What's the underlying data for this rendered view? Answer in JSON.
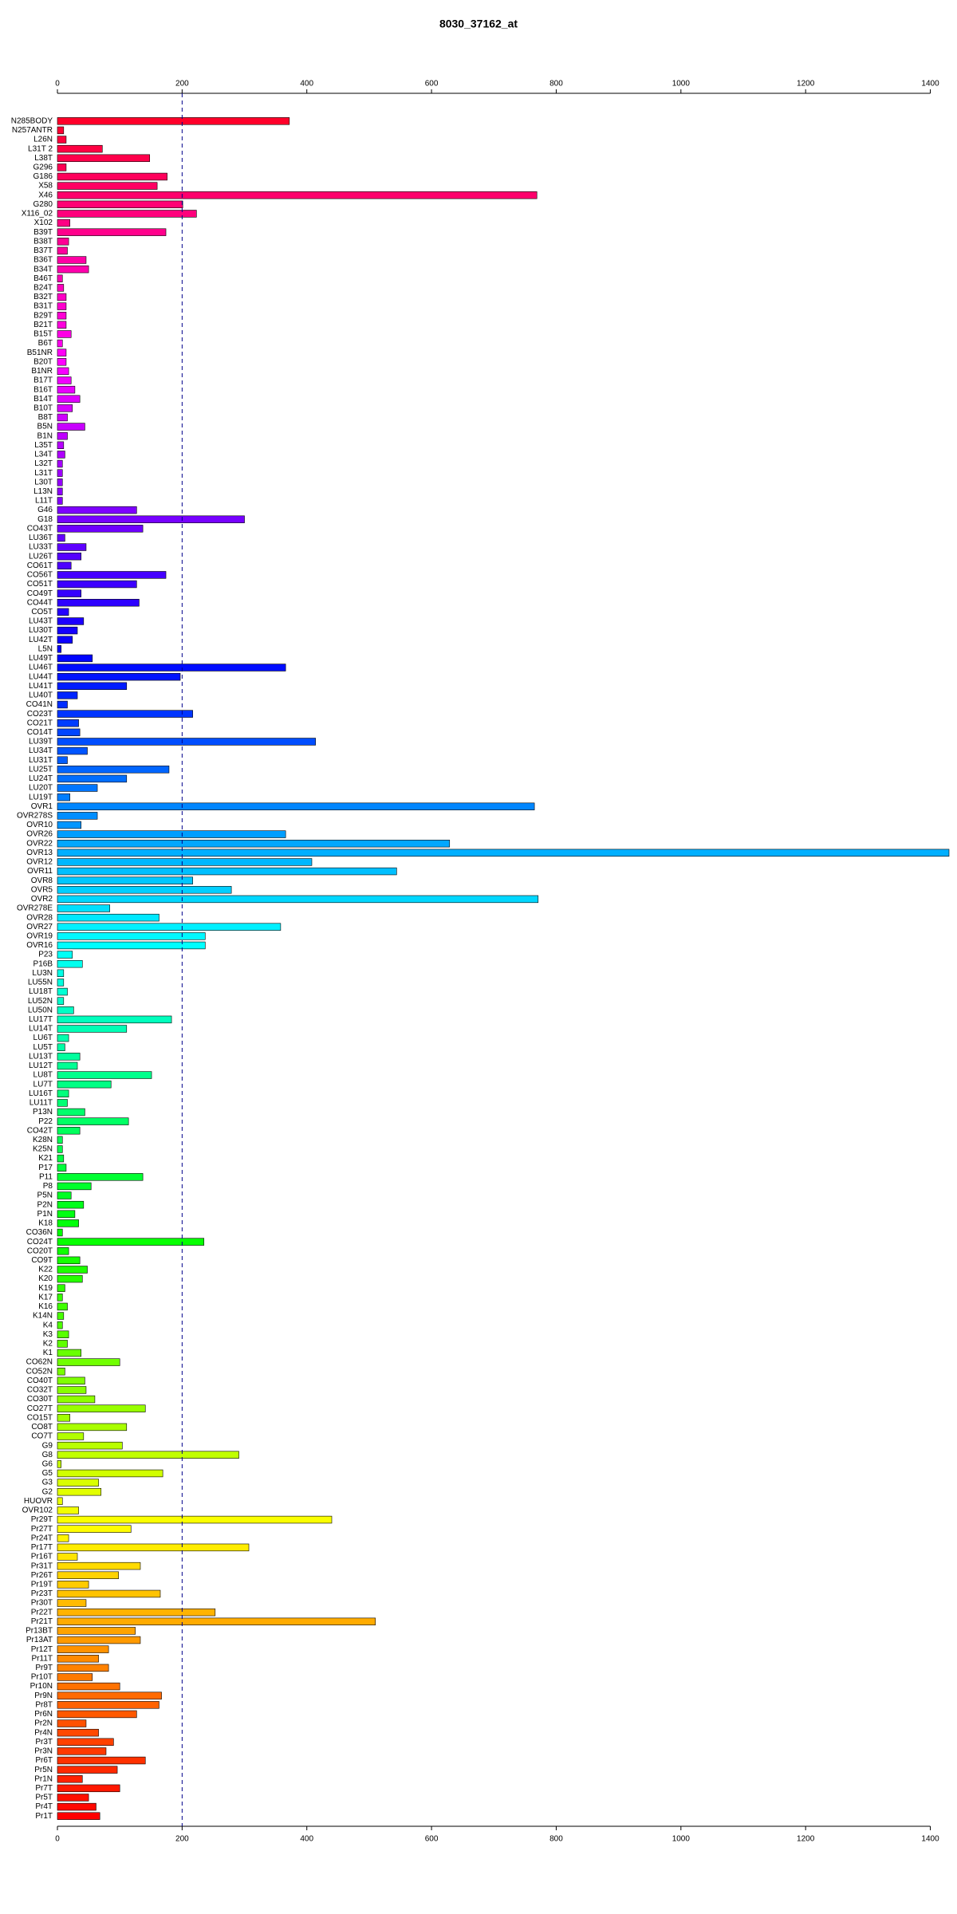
{
  "chart_data": {
    "type": "barh",
    "title": "8030_37162_at",
    "categories": [
      "N285BODY",
      "N257ANTR",
      "L26N",
      "L31T 2",
      "L38T",
      "G296",
      "G186",
      "X58",
      "X46",
      "G280",
      "X116_02",
      "X102",
      "B39T",
      "B38T",
      "B37T",
      "B36T",
      "B34T",
      "B46T",
      "B24T",
      "B32T",
      "B31T",
      "B29T",
      "B21T",
      "B15T",
      "B6T",
      "B51NR",
      "B20T",
      "B1NR",
      "B17T",
      "B16T",
      "B14T",
      "B10T",
      "B8T",
      "B5N",
      "B1N",
      "L35T",
      "L34T",
      "L32T",
      "L31T",
      "L30T",
      "L13N",
      "L11T",
      "G46",
      "G18",
      "CO43T",
      "LU36T",
      "LU33T",
      "LU26T",
      "CO61T",
      "CO56T",
      "CO51T",
      "CO49T",
      "CO44T",
      "CO5T",
      "LU43T",
      "LU30T",
      "LU42T",
      "L5N",
      "LU49T",
      "LU46T",
      "LU44T",
      "LU41T",
      "LU40T",
      "CO41N",
      "CO23T",
      "CO21T",
      "CO14T",
      "LU39T",
      "LU34T",
      "LU31T",
      "LU25T",
      "LU24T",
      "LU20T",
      "LU19T",
      "OVR1",
      "OVR278S",
      "OVR10",
      "OVR26",
      "OVR22",
      "OVR13",
      "OVR12",
      "OVR11",
      "OVR8",
      "OVR5",
      "OVR2",
      "OVR278E",
      "OVR28",
      "OVR27",
      "OVR19",
      "OVR16",
      "P23",
      "P16B",
      "LU3N",
      "LU55N",
      "LU18T",
      "LU52N",
      "LU50N",
      "LU17T",
      "LU14T",
      "LU6T",
      "LU5T",
      "LU13T",
      "LU12T",
      "LU8T",
      "LU7T",
      "LU16T",
      "LU11T",
      "P13N",
      "P22",
      "CO42T",
      "K28N",
      "K25N",
      "K21",
      "P17",
      "P11",
      "P8",
      "P5N",
      "P2N",
      "P1N",
      "K18",
      "CO36N",
      "CO24T",
      "CO20T",
      "CO9T",
      "K22",
      "K20",
      "K19",
      "K17",
      "K16",
      "K14N",
      "K4",
      "K3",
      "K2",
      "K1",
      "CO62N",
      "CO52N",
      "CO40T",
      "CO32T",
      "CO30T",
      "CO27T",
      "CO15T",
      "CO8T",
      "CO7T",
      "G9",
      "G8",
      "G6",
      "G5",
      "G3",
      "G2",
      "HUOVR",
      "OVR102",
      "Pr29T",
      "Pr27T",
      "Pr24T",
      "Pr17T",
      "Pr16T",
      "Pr31T",
      "Pr26T",
      "Pr19T",
      "Pr23T",
      "Pr30T",
      "Pr22T",
      "Pr21T",
      "Pr13BT",
      "Pr13AT",
      "Pr12T",
      "Pr11T",
      "Pr9T",
      "Pr10T",
      "Pr10N",
      "Pr9N",
      "Pr8T",
      "Pr6N",
      "Pr2N",
      "Pr4N",
      "Pr3T",
      "Pr3N",
      "Pr6T",
      "Pr5N",
      "Pr1N",
      "Pr7T",
      "Pr5T",
      "Pr4T",
      "Pr1T"
    ],
    "values": [
      372,
      10,
      14,
      72,
      148,
      14,
      176,
      160,
      769,
      201,
      223,
      20,
      174,
      18,
      16,
      46,
      50,
      8,
      10,
      14,
      14,
      14,
      14,
      22,
      8,
      14,
      14,
      18,
      22,
      28,
      36,
      24,
      16,
      44,
      16,
      10,
      12,
      8,
      8,
      8,
      8,
      8,
      127,
      300,
      137,
      12,
      46,
      38,
      22,
      174,
      127,
      38,
      131,
      18,
      42,
      32,
      24,
      6,
      56,
      366,
      197,
      111,
      32,
      16,
      217,
      34,
      36,
      414,
      48,
      16,
      179,
      111,
      64,
      20,
      765,
      64,
      38,
      366,
      629,
      1430,
      408,
      544,
      217,
      279,
      771,
      84,
      163,
      358,
      237,
      237,
      24,
      40,
      10,
      10,
      16,
      10,
      26,
      183,
      111,
      18,
      12,
      36,
      32,
      151,
      86,
      18,
      16,
      44,
      114,
      36,
      8,
      8,
      10,
      14,
      137,
      54,
      22,
      42,
      28,
      34,
      8,
      235,
      18,
      36,
      48,
      40,
      12,
      8,
      16,
      10,
      8,
      18,
      16,
      38,
      100,
      12,
      44,
      46,
      60,
      141,
      20,
      111,
      42,
      104,
      291,
      6,
      169,
      66,
      70,
      8,
      34,
      440,
      118,
      18,
      307,
      32,
      133,
      98,
      50,
      165,
      46,
      253,
      510,
      125,
      133,
      82,
      66,
      82,
      56,
      100,
      167,
      163,
      127,
      46,
      66,
      90,
      78,
      141,
      96,
      40,
      100,
      50,
      62,
      68
    ],
    "bar_color": {
      "hue_from": 350,
      "hue_to": 0,
      "saturation": 100,
      "lightness": 50
    },
    "xlim": [
      0,
      1430
    ],
    "xticks": [
      0,
      200,
      400,
      600,
      800,
      1000,
      1200,
      1400
    ],
    "reference_line": 200,
    "reference_line_color": "#00008b"
  }
}
